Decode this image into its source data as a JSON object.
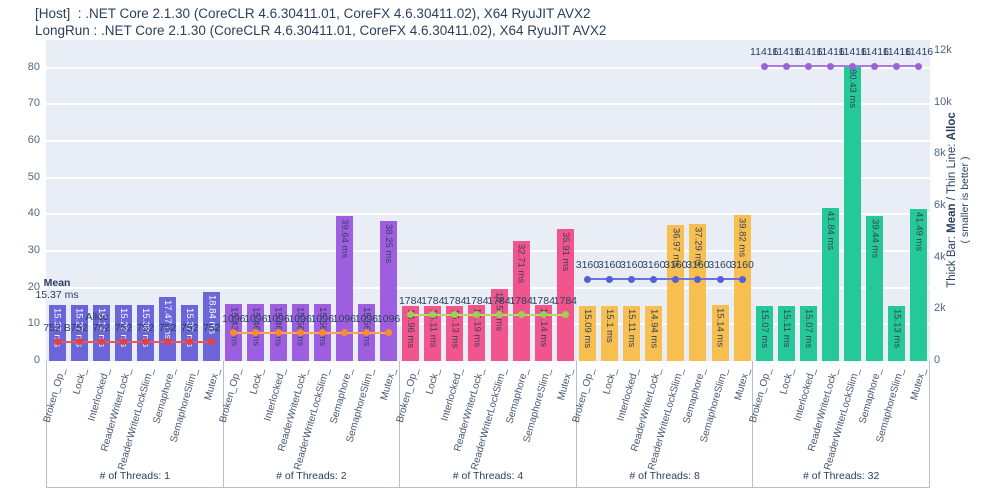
{
  "chart_data": {
    "type": "bar",
    "title_line1": "[Host]  : .NET Core 2.1.30 (CoreCLR 4.6.30411.01, CoreFX 4.6.30411.02), X64 RyuJIT AVX2",
    "title_line2": "LongRun : .NET Core 2.1.30 (CoreCLR 4.6.30411.01, CoreFX 4.6.30411.02), X64 RyuJIT AVX2",
    "categories": [
      "Broken_Op_",
      "Lock_",
      "Interlocked_",
      "ReaderWriterLock_",
      "ReaderWriterLockSlim_",
      "Semaphore_",
      "SemaphoreSlim_",
      "Mutex_"
    ],
    "left_axis": {
      "ticks": [
        0,
        10,
        20,
        30,
        40,
        50,
        60,
        70,
        80
      ],
      "max": 87.5,
      "unit": "ms"
    },
    "right_axis": {
      "tick_values": [
        0,
        2000,
        4000,
        6000,
        8000,
        10000,
        12000
      ],
      "tick_labels": [
        "0",
        "2k",
        "4k",
        "6k",
        "8k",
        "10k",
        "12k"
      ],
      "max": 12425,
      "unit": "B"
    },
    "right_axis_label": {
      "prefix": "Thick Bar: ",
      "bold1": "Mean",
      "middle": "  /  Thin Line: ",
      "bold2": "Alloc",
      "line2": "( smaller is better )"
    },
    "annotations": {
      "mean_title": "Mean",
      "mean_value": "15.37 ms",
      "alloc_title": "Alloc"
    },
    "legend_position": "right",
    "grid": true,
    "groups": [
      {
        "label": "# of Threads: 1",
        "bar_color": "#6a65d8",
        "line_color": "#ef5552",
        "dot_color": "#e8413d",
        "mean_label_color": "#ffffff",
        "means": [
          15.37,
          15.27,
          15.14,
          15.23,
          15.38,
          17.47,
          15.37,
          18.84
        ],
        "mean_labels": [
          "15.37 ms",
          "15.27 ms",
          "15.14 ms",
          "15.23 ms",
          "15.38 ms",
          "17.47 ms",
          "15.37 ms",
          "18.84 ms"
        ],
        "alloc": 752,
        "alloc_labels": [
          "752 B",
          "752",
          "752",
          "752",
          "752",
          "752",
          "752",
          "752"
        ]
      },
      {
        "label": "# of Threads: 2",
        "bar_color": "#9d5ee0",
        "line_color": "#fca44e",
        "dot_color": "#f98d2e",
        "mean_label_color": "#36415f",
        "means": [
          15.43,
          15.46,
          15.46,
          15.56,
          15.56,
          39.64,
          15.56,
          38.25
        ],
        "mean_labels": [
          "15.43 ms",
          "15.46 ms",
          "15.46 ms",
          "15.56 ms",
          "15.56 ms",
          "39.64 ms",
          "15.56 ms",
          "38.25 ms"
        ],
        "alloc": 1096,
        "alloc_labels": [
          "1096",
          "1096",
          "1096",
          "1096",
          "1096",
          "1096",
          "1096",
          "1096"
        ]
      },
      {
        "label": "# of Threads: 4",
        "bar_color": "#f2548c",
        "line_color": "#b2d968",
        "dot_color": "#9fcf4e",
        "mean_label_color": "#36415f",
        "means": [
          14.96,
          15.11,
          15.13,
          15.19,
          19.57,
          32.71,
          15.14,
          35.91
        ],
        "mean_labels": [
          "14.96 ms",
          "15.11 ms",
          "15.13 ms",
          "15.19 ms",
          "19.57 ms",
          "32.71 ms",
          "15.14 ms",
          "35.91 ms"
        ],
        "alloc": 1784,
        "alloc_labels": [
          "1784",
          "1784",
          "1784",
          "1784",
          "1784",
          "1784",
          "1784",
          "1784"
        ]
      },
      {
        "label": "# of Threads: 8",
        "bar_color": "#f6bf50",
        "line_color": "#6673e0",
        "dot_color": "#5560d4",
        "mean_label_color": "#36415f",
        "means": [
          15.09,
          15.1,
          15.11,
          14.94,
          36.97,
          37.29,
          15.14,
          39.82
        ],
        "mean_labels": [
          "15.09 ms",
          "15.1 ms",
          "15.11 ms",
          "14.94 ms",
          "36.97 ms",
          "37.29 ms",
          "15.14 ms",
          "39.82 ms"
        ],
        "alloc": 3160,
        "alloc_labels": [
          "3160",
          "3160",
          "3160",
          "3160",
          "3160",
          "3160",
          "3160",
          "3160"
        ]
      },
      {
        "label": "# of Threads: 32",
        "bar_color": "#25c998",
        "line_color": "#aa7ce0",
        "dot_color": "#9b64d4",
        "mean_label_color": "#36415f",
        "means": [
          15.07,
          15.11,
          15.07,
          41.84,
          80.43,
          39.44,
          15.13,
          41.49
        ],
        "mean_labels": [
          "15.07 ms",
          "15.11 ms",
          "15.07 ms",
          "41.84 ms",
          "80.43 ms",
          "39.44 ms",
          "15.13 ms",
          "41.49 ms"
        ],
        "alloc": 11416,
        "alloc_labels": [
          "11416",
          "11416",
          "11416",
          "11416",
          "11416",
          "11416",
          "11416",
          "11416"
        ]
      }
    ],
    "colors": {
      "plot_bg": "#e8edf6",
      "grid": "#ffffff",
      "axis_text": "#506784",
      "title_text": "#2a3f5f",
      "divider": "#b9bdc6",
      "alloc_label_text": "#2a3f5f"
    }
  }
}
